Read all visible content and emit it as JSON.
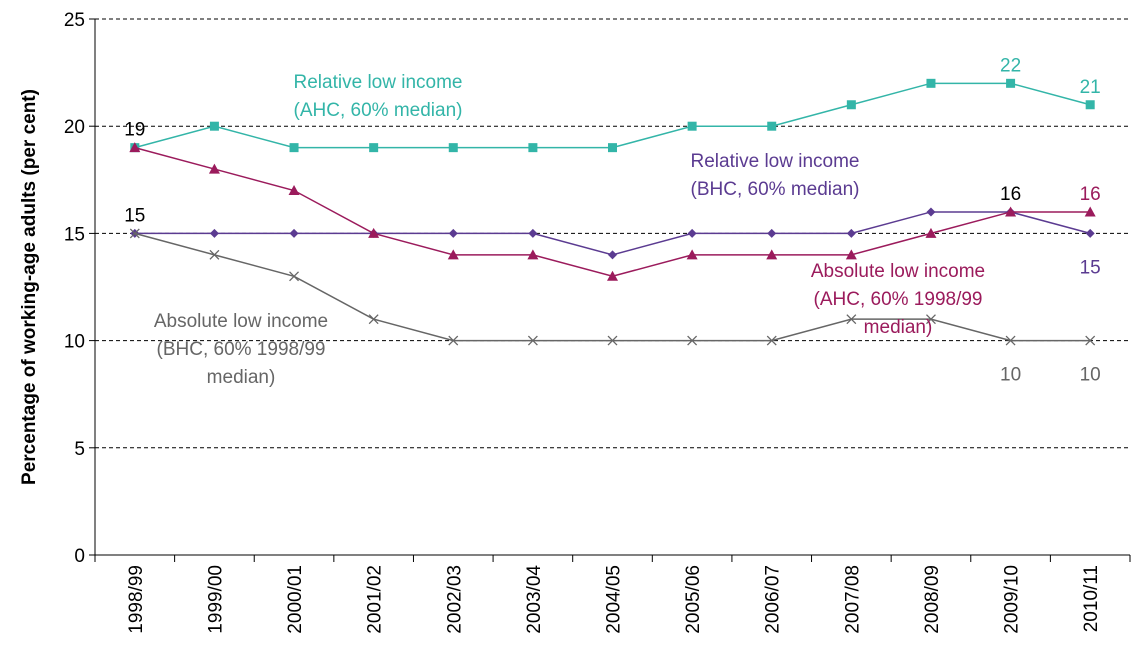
{
  "chart_data": {
    "type": "line",
    "y_label": "Percentage of working-age adults (per cent)",
    "categories": [
      "1998/99",
      "1999/00",
      "2000/01",
      "2001/02",
      "2002/03",
      "2003/04",
      "2004/05",
      "2005/06",
      "2006/07",
      "2007/08",
      "2008/09",
      "2009/10",
      "2010/11"
    ],
    "ylim": [
      0,
      25
    ],
    "yticks": [
      0,
      5,
      10,
      15,
      20,
      25
    ],
    "grid": true,
    "series": [
      {
        "name": "Relative low income (AHC, 60% median)",
        "color": "#33b5a8",
        "marker": "square",
        "values": [
          19,
          20,
          19,
          19,
          19,
          19,
          19,
          20,
          20,
          21,
          22,
          22,
          21
        ],
        "value_labels": [
          "19",
          null,
          null,
          null,
          null,
          null,
          null,
          null,
          null,
          null,
          null,
          "22",
          "21"
        ],
        "value_label_colors": [
          "#000000",
          null,
          null,
          null,
          null,
          null,
          null,
          null,
          null,
          null,
          null,
          "#33b5a8",
          "#33b5a8"
        ],
        "value_label_positions": [
          "above",
          null,
          null,
          null,
          null,
          null,
          null,
          null,
          null,
          null,
          null,
          "above",
          "above"
        ]
      },
      {
        "name": "Relative low income (BHC, 60% median)",
        "color": "#5b3b91",
        "marker": "diamond",
        "values": [
          15,
          15,
          15,
          15,
          15,
          15,
          14,
          15,
          15,
          15,
          16,
          16,
          15
        ],
        "value_labels": [
          "15",
          null,
          null,
          null,
          null,
          null,
          null,
          null,
          null,
          null,
          null,
          "16",
          "15"
        ],
        "value_label_colors": [
          "#000000",
          null,
          null,
          null,
          null,
          null,
          null,
          null,
          null,
          null,
          null,
          "#000000",
          "#5b3b91"
        ],
        "value_label_positions": [
          "above",
          null,
          null,
          null,
          null,
          null,
          null,
          null,
          null,
          null,
          null,
          "above",
          "below"
        ]
      },
      {
        "name": "Absolute low income (AHC, 60% 1998/99 median)",
        "color": "#9b1b5c",
        "marker": "triangle",
        "values": [
          19,
          18,
          17,
          15,
          14,
          14,
          13,
          14,
          14,
          14,
          15,
          16,
          16
        ],
        "value_labels": [
          null,
          null,
          null,
          null,
          null,
          null,
          null,
          null,
          null,
          null,
          null,
          null,
          "16"
        ],
        "value_label_colors": [
          null,
          null,
          null,
          null,
          null,
          null,
          null,
          null,
          null,
          null,
          null,
          null,
          "#9b1b5c"
        ],
        "value_label_positions": [
          null,
          null,
          null,
          null,
          null,
          null,
          null,
          null,
          null,
          null,
          null,
          null,
          "above"
        ]
      },
      {
        "name": "Absolute low income (BHC, 60% 1998/99 median)",
        "color": "#666666",
        "marker": "x",
        "values": [
          15,
          14,
          13,
          11,
          10,
          10,
          10,
          10,
          10,
          11,
          11,
          10,
          10
        ],
        "value_labels": [
          null,
          null,
          null,
          null,
          null,
          null,
          null,
          null,
          null,
          null,
          null,
          "10",
          "10"
        ],
        "value_label_colors": [
          null,
          null,
          null,
          null,
          null,
          null,
          null,
          null,
          null,
          null,
          null,
          "#666666",
          "#666666"
        ],
        "value_label_positions": [
          null,
          null,
          null,
          null,
          null,
          null,
          null,
          null,
          null,
          null,
          null,
          "below",
          "below"
        ]
      }
    ]
  }
}
